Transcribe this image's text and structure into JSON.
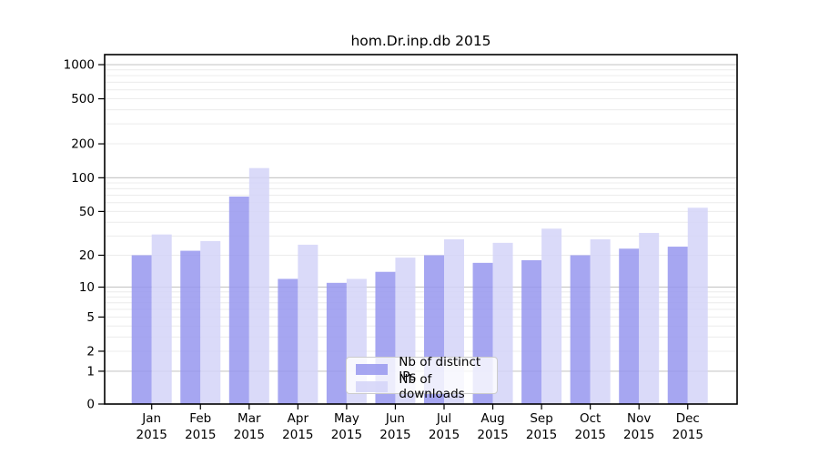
{
  "chart_data": {
    "type": "bar",
    "title": "hom.Dr.inp.db 2015",
    "categories": [
      "Jan",
      "Feb",
      "Mar",
      "Apr",
      "May",
      "Jun",
      "Jul",
      "Aug",
      "Sep",
      "Oct",
      "Nov",
      "Dec"
    ],
    "year_label": "2015",
    "series": [
      {
        "name": "Nb of distinct IPs",
        "color": "#9797ee",
        "values": [
          20,
          22,
          68,
          12,
          11,
          14,
          20,
          17,
          18,
          20,
          23,
          24
        ]
      },
      {
        "name": "Nb of downloads",
        "color": "#d3d3f8",
        "values": [
          31,
          27,
          122,
          25,
          12,
          19,
          28,
          26,
          35,
          28,
          32,
          54
        ]
      }
    ],
    "yscale": "log1p",
    "yticks": [
      0,
      1,
      2,
      5,
      10,
      20,
      50,
      100,
      200,
      500,
      1000
    ],
    "ylim": [
      0,
      1250
    ],
    "grid": true,
    "legend_position": "bottom-center",
    "colors": {
      "grid_minor": "#ececec",
      "grid_decade": "#c9c9c9",
      "axis": "#000000",
      "background": "#ffffff"
    }
  }
}
